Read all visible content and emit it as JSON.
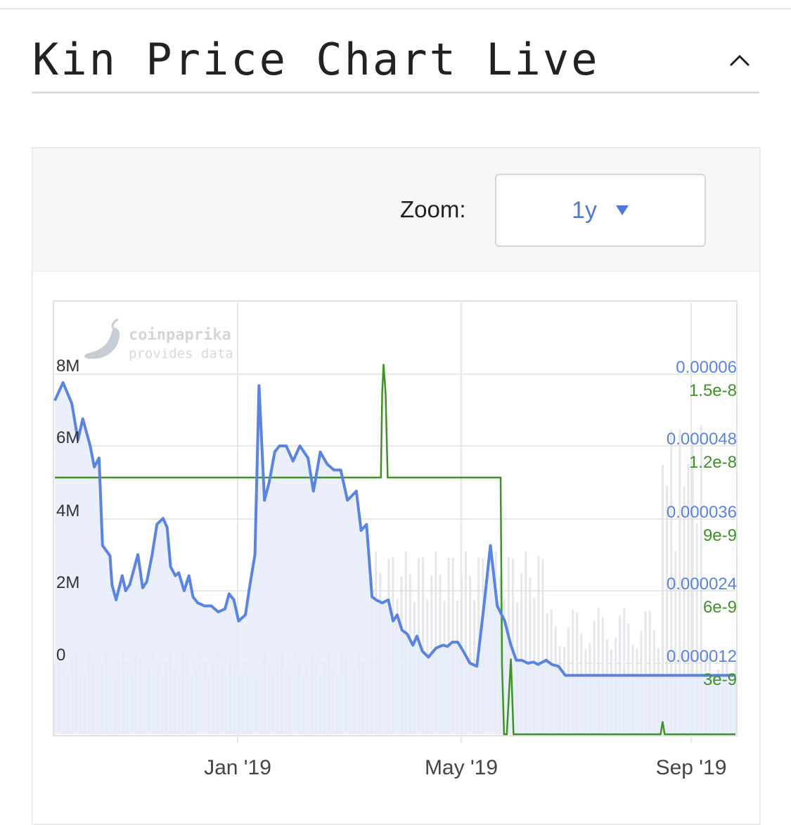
{
  "header": {
    "title": "Kin Price Chart Live",
    "collapse_icon": "chevron-up-icon"
  },
  "toolbar": {
    "zoom_label": "Zoom:",
    "zoom_value": "1y",
    "zoom_dropdown_icon": "triangle-down-icon"
  },
  "watermark": {
    "brand": "coinpaprika",
    "tagline": "provides data",
    "logo_icon": "chili-pepper-icon"
  },
  "colors": {
    "price": "#5a84e0",
    "price_fill": "#e6ecfa",
    "volume_line": "#3f9326",
    "volume_bars": "#dfe1e6",
    "grid": "#e8e8e8"
  },
  "chart_data": {
    "type": "line",
    "x_ticks": [
      "Jan '19",
      "May '19",
      "Sep '19"
    ],
    "y_left_ticks": [
      "0",
      "2M",
      "4M",
      "6M",
      "8M"
    ],
    "y_right_price_ticks": [
      "0.000012",
      "0.000024",
      "0.000036",
      "0.000048",
      "0.00006"
    ],
    "y_right_secondary_ticks": [
      "3e-9",
      "6e-9",
      "9e-9",
      "1.2e-8",
      "1.5e-8"
    ],
    "ylim_left": [
      0,
      8000000
    ],
    "ylim_price": [
      1.2e-05,
      6e-05
    ],
    "ylim_secondary": [
      3e-09,
      1.5e-08
    ],
    "grid": true,
    "legend": "none",
    "series": [
      {
        "x": [
          0.0,
          1.2,
          2.5,
          3.4,
          4.1,
          5.2,
          5.8,
          6.5,
          7.0,
          8.1,
          8.4,
          9.0,
          9.9,
          10.4,
          11.0,
          12.2,
          12.9,
          13.5,
          14.3,
          15.0,
          15.9,
          16.5,
          17.0,
          17.7,
          18.2,
          19.0,
          19.7,
          20.3,
          21.0,
          22.0,
          23.0,
          24.0,
          25.0,
          25.6,
          26.3,
          27.0,
          28.0,
          28.6,
          29.4,
          30.0,
          30.8,
          31.5,
          32.3,
          33.0,
          34.0,
          35.0,
          36.0,
          37.2,
          38.0,
          39.0,
          40.0,
          41.0,
          42.0,
          43.0,
          44.3,
          45.0,
          45.8,
          46.6,
          47.2,
          48.1,
          49.0,
          49.7,
          50.3,
          51.0,
          51.8,
          52.6,
          53.2,
          54.0,
          54.9,
          56.0,
          57.0,
          57.7,
          58.4,
          59.2,
          60.0,
          61.0,
          62.0,
          63.0,
          64.0,
          65.0,
          66.1,
          67.0,
          67.8,
          68.6,
          69.5,
          70.3,
          71.0,
          72.2,
          73.0,
          74.0,
          75.0,
          76.0,
          77.0,
          78.0,
          79.0,
          80.0,
          81.1,
          82.0,
          83.0,
          84.0,
          85.0,
          86.0,
          87.0,
          88.0,
          88.8,
          89.4,
          90.0,
          90.9,
          92.0,
          93.0,
          94.0,
          95.0,
          96.1,
          97.0,
          97.8,
          98.5,
          99.2,
          100.0
        ],
        "values": [
          5.55e-05,
          5.85e-05,
          5.5e-05,
          4.9e-05,
          5.25e-05,
          4.8e-05,
          4.45e-05,
          4.6e-05,
          3.15e-05,
          2.98e-05,
          2.5e-05,
          2.25e-05,
          2.65e-05,
          2.4e-05,
          2.5e-05,
          3e-05,
          2.45e-05,
          2.55e-05,
          3e-05,
          3.5e-05,
          3.6e-05,
          3.45e-05,
          2.8e-05,
          2.65e-05,
          2.7e-05,
          2.4e-05,
          2.65e-05,
          2.3e-05,
          2.2e-05,
          2.15e-05,
          2.15e-05,
          2.05e-05,
          2.1e-05,
          2.35e-05,
          2.25e-05,
          1.9e-05,
          2e-05,
          2.45e-05,
          3e-05,
          5.8e-05,
          3.9e-05,
          4.2e-05,
          4.7e-05,
          4.8e-05,
          4.8e-05,
          4.55e-05,
          4.8e-05,
          4.6e-05,
          4.05e-05,
          4.7e-05,
          4.5e-05,
          4.4e-05,
          4.4e-05,
          3.9e-05,
          4.05e-05,
          3.4e-05,
          3.5e-05,
          2.3e-05,
          2.25e-05,
          2.2e-05,
          2.25e-05,
          1.9e-05,
          2e-05,
          1.75e-05,
          1.68e-05,
          1.5e-05,
          1.65e-05,
          1.4e-05,
          1.3e-05,
          1.45e-05,
          1.5e-05,
          1.48e-05,
          1.55e-05,
          1.55e-05,
          1.4e-05,
          1.2e-05,
          1.15e-05,
          2.1e-05,
          3.15e-05,
          2.15e-05,
          1.9e-05,
          1.5e-05,
          1.25e-05,
          1.25e-05,
          1.2e-05,
          1.22e-05,
          1.18e-05,
          1.25e-05,
          1.18e-05,
          1.15e-05,
          1e-05,
          1e-05,
          1e-05,
          1e-05,
          1e-05,
          1e-05,
          1e-05,
          1e-05,
          1e-05,
          1e-05,
          1e-05,
          1e-05,
          1e-05,
          1e-05,
          1e-05,
          1e-05,
          1e-05,
          1e-05,
          1e-05,
          1e-05,
          1e-05,
          1e-05,
          1e-05,
          1e-05,
          1e-05,
          1e-05,
          1e-05,
          1e-05
        ]
      },
      {
        "x": [
          0,
          47.9,
          48.1,
          48.3,
          48.6,
          48.9,
          65.5,
          65.7,
          66.0,
          66.4,
          67.0,
          67.4,
          67.8,
          89.0,
          89.3,
          89.6,
          90.1,
          100
        ],
        "values": [
          1.13e-08,
          1.13e-08,
          1.48e-08,
          1.6e-08,
          1.48e-08,
          1.13e-08,
          1.13e-08,
          3.5e-09,
          0,
          0,
          3.8e-09,
          0,
          0,
          0,
          1.2e-09,
          0,
          0,
          0
        ]
      }
    ]
  }
}
